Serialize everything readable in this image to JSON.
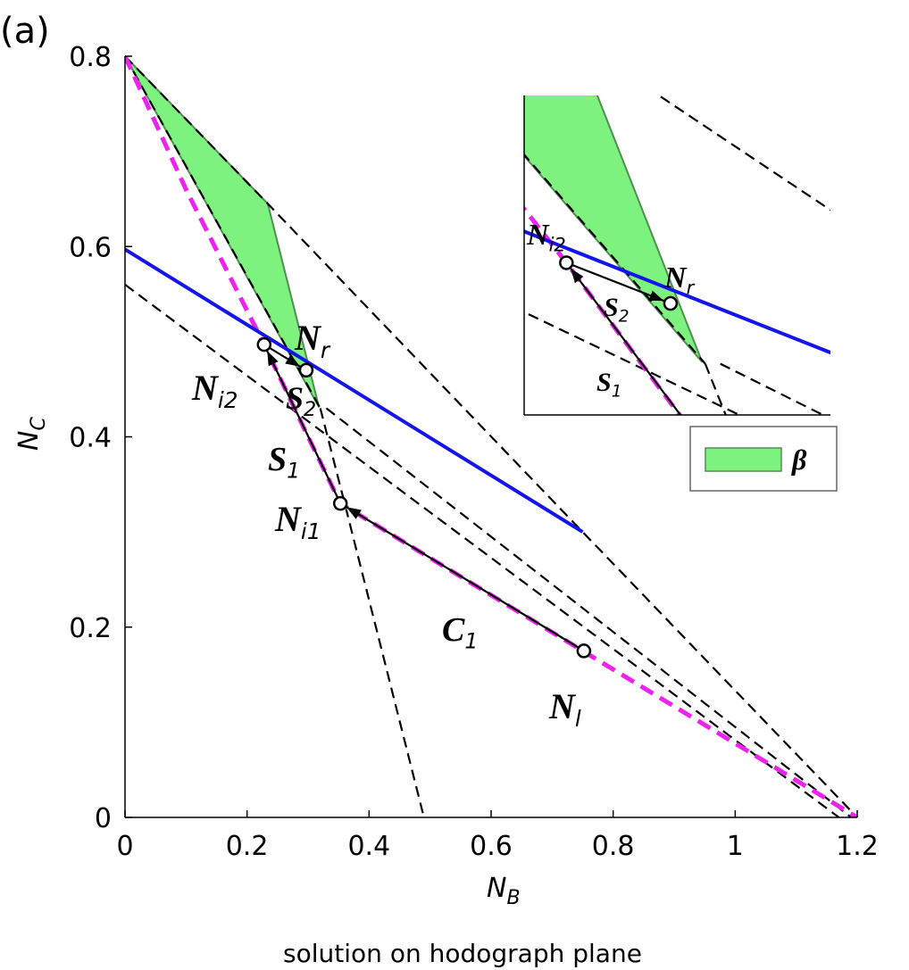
{
  "chart_data": {
    "type": "line",
    "panel_label": "(a)",
    "caption": "solution on hodograph plane",
    "xlabel": {
      "text": "N",
      "sub": "B"
    },
    "ylabel": {
      "text": "N",
      "sub": "C"
    },
    "xlim": [
      0,
      1.2
    ],
    "ylim": [
      0,
      0.8
    ],
    "xticks": [
      0,
      0.2,
      0.4,
      0.6,
      0.8,
      1,
      1.2
    ],
    "yticks": [
      0,
      0.2,
      0.4,
      0.6,
      0.8
    ],
    "series": [
      {
        "kind": "area",
        "name": "β",
        "color": "#7ef27e",
        "edge": "#4f8f4f",
        "x": [
          0,
          0.234,
          0.318,
          0
        ],
        "y": [
          0.8,
          0.645,
          0.431,
          0.8
        ]
      },
      {
        "kind": "dashed",
        "color": "#000000",
        "x": [
          0,
          0.234,
          0.75,
          1.2
        ],
        "y": [
          0.8,
          0.645,
          0.3,
          0
        ]
      },
      {
        "kind": "dashed",
        "color": "#000000",
        "x": [
          0,
          1.17
        ],
        "y": [
          0.56,
          0
        ]
      },
      {
        "kind": "dashed",
        "color": "#000000",
        "x": [
          0,
          0.32
        ],
        "y": [
          0.8,
          0.43
        ]
      },
      {
        "kind": "dashed",
        "color": "#000000",
        "x": [
          0.32,
          0.36,
          0.49
        ],
        "y": [
          0.43,
          0.33,
          0
        ]
      },
      {
        "kind": "dashed",
        "color": "#000000",
        "x": [
          0.33,
          1.19
        ],
        "y": [
          0.43,
          0
        ]
      },
      {
        "kind": "thick-dashed",
        "color": "#ee22ee",
        "x": [
          0,
          0.1,
          0.228,
          0.3,
          0.353,
          0.75,
          1.2
        ],
        "y": [
          0.8,
          0.66,
          0.497,
          0.4,
          0.33,
          0.175,
          0
        ]
      },
      {
        "kind": "solid",
        "color": "#1414ee",
        "x": [
          0,
          0.75
        ],
        "y": [
          0.597,
          0.3
        ]
      }
    ],
    "path": {
      "color": "#000000",
      "x": [
        0.752,
        0.353,
        0.228,
        0.297
      ],
      "y": [
        0.175,
        0.33,
        0.497,
        0.47
      ]
    },
    "points": {
      "x": [
        0.752,
        0.353,
        0.228,
        0.297
      ],
      "y": [
        0.175,
        0.33,
        0.497,
        0.47
      ]
    },
    "annotations": [
      {
        "text": "N",
        "sub": "r"
      },
      {
        "text": "N",
        "sub": "i2"
      },
      {
        "text": "S",
        "sub": "2"
      },
      {
        "text": "S",
        "sub": "1"
      },
      {
        "text": "N",
        "sub": "i1"
      },
      {
        "text": "C",
        "sub": "1"
      },
      {
        "text": "N",
        "sub": "l"
      }
    ],
    "inset": {
      "xlim": [
        0.2,
        0.403
      ],
      "ylim": [
        0.396,
        0.608
      ]
    }
  }
}
